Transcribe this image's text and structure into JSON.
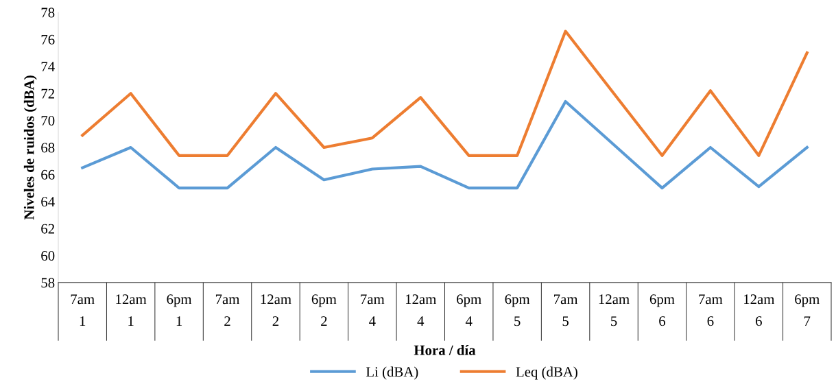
{
  "chart_data": {
    "type": "line",
    "xlabel": "Hora / día",
    "ylabel": "Niveles de ruidos (dBA)",
    "categories": [
      "7am\n1",
      "12am\n1",
      "6pm\n1",
      "7am\n2",
      "12am\n2",
      "6pm\n2",
      "7am\n4",
      "12am\n4",
      "6pm\n4",
      "6pm\n5",
      "7am\n5",
      "12am\n5",
      "6pm\n6",
      "7am\n6",
      "12am\n6",
      "6pm\n7"
    ],
    "series": [
      {
        "name": "Li (dBA)",
        "color": "#5b9bd5",
        "values": [
          66.5,
          68,
          65,
          65,
          68,
          65.6,
          66.4,
          66.6,
          65,
          65,
          71.4,
          68.2,
          65,
          68,
          65.1,
          68
        ]
      },
      {
        "name": "Leq (dBA)",
        "color": "#ed7d31",
        "values": [
          68.9,
          72,
          67.4,
          67.4,
          72,
          68,
          68.7,
          71.7,
          67.4,
          67.4,
          76.6,
          72,
          67.4,
          72.2,
          67.4,
          75
        ]
      }
    ],
    "ylim": [
      58,
      78
    ],
    "yticks": [
      58,
      60,
      62,
      64,
      66,
      68,
      70,
      72,
      74,
      76,
      78
    ],
    "grid": false,
    "legend": "bottom",
    "marker": "none",
    "line_style": "solid"
  }
}
